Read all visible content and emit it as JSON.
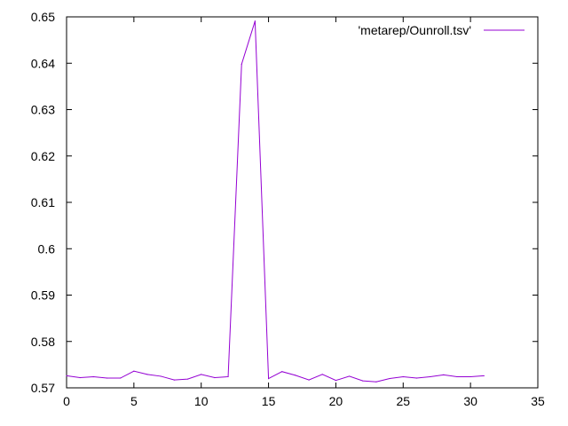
{
  "chart_data": {
    "type": "line",
    "title": "",
    "xlabel": "",
    "ylabel": "",
    "xlim": [
      0,
      35
    ],
    "ylim": [
      0.57,
      0.65
    ],
    "xticks": [
      0,
      5,
      10,
      15,
      20,
      25,
      30,
      35
    ],
    "yticks": [
      0.57,
      0.58,
      0.59,
      0.6,
      0.61,
      0.62,
      0.63,
      0.64,
      0.65
    ],
    "xtick_labels": [
      "0",
      "5",
      "10",
      "15",
      "20",
      "25",
      "30",
      "35"
    ],
    "ytick_labels": [
      "0.57",
      "0.58",
      "0.59",
      "0.6",
      "0.61",
      "0.62",
      "0.63",
      "0.64",
      "0.65"
    ],
    "grid": false,
    "legend_position": "top-right",
    "series": [
      {
        "name": "'metarep/Ounroll.tsv'",
        "color": "#9400d3",
        "x": [
          0,
          1,
          2,
          3,
          4,
          5,
          6,
          7,
          8,
          9,
          10,
          11,
          12,
          13,
          14,
          15,
          16,
          17,
          18,
          19,
          20,
          21,
          22,
          23,
          24,
          25,
          26,
          27,
          28,
          29,
          30,
          31
        ],
        "y": [
          0.5726,
          0.5722,
          0.5724,
          0.5721,
          0.5721,
          0.5736,
          0.5729,
          0.5725,
          0.5717,
          0.5719,
          0.5729,
          0.5722,
          0.5724,
          0.6398,
          0.6491,
          0.572,
          0.5735,
          0.5727,
          0.5717,
          0.5729,
          0.5716,
          0.5725,
          0.5715,
          0.5713,
          0.572,
          0.5724,
          0.5721,
          0.5724,
          0.5728,
          0.5724,
          0.5724,
          0.5726
        ]
      }
    ]
  }
}
